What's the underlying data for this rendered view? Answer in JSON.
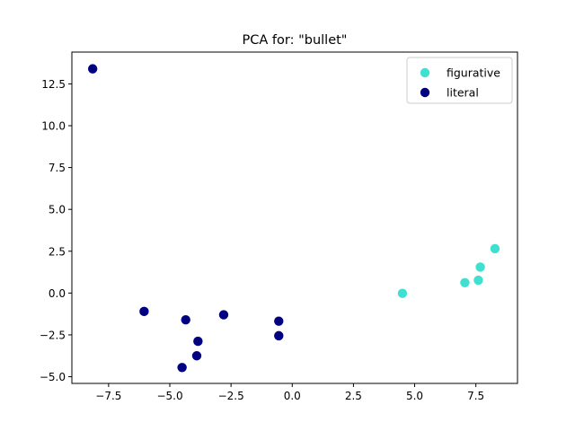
{
  "chart_data": {
    "type": "scatter",
    "title": "PCA for: \"bullet\"",
    "xlabel": "",
    "ylabel": "",
    "xlim": [
      -9.0,
      9.2
    ],
    "ylim": [
      -5.4,
      14.4
    ],
    "xticks": [
      -7.5,
      -5.0,
      -2.5,
      0.0,
      2.5,
      5.0,
      7.5
    ],
    "xtick_labels": [
      "−7.5",
      "−5.0",
      "−2.5",
      "0.0",
      "2.5",
      "5.0",
      "7.5"
    ],
    "yticks": [
      -5.0,
      -2.5,
      0.0,
      2.5,
      5.0,
      7.5,
      10.0,
      12.5
    ],
    "ytick_labels": [
      "−5.0",
      "−2.5",
      "0.0",
      "2.5",
      "5.0",
      "7.5",
      "10.0",
      "12.5"
    ],
    "grid": false,
    "legend_position": "top-right",
    "series": [
      {
        "name": "figurative",
        "color": "#40e0d0",
        "points": [
          [
            4.5,
            -0.02
          ],
          [
            7.05,
            0.62
          ],
          [
            7.6,
            0.77
          ],
          [
            7.68,
            1.55
          ],
          [
            8.28,
            2.65
          ]
        ]
      },
      {
        "name": "literal",
        "color": "#000080",
        "points": [
          [
            -8.15,
            13.4
          ],
          [
            -6.05,
            -1.1
          ],
          [
            -4.35,
            -1.6
          ],
          [
            -2.8,
            -1.3
          ],
          [
            -0.55,
            -1.68
          ],
          [
            -0.55,
            -2.55
          ],
          [
            -3.85,
            -2.88
          ],
          [
            -3.9,
            -3.75
          ],
          [
            -4.5,
            -4.45
          ]
        ]
      }
    ]
  }
}
